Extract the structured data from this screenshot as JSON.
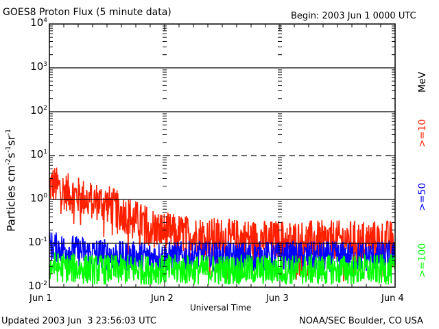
{
  "header": {
    "title": "GOES8 Proton Flux (5 minute data)",
    "begin": "Begin: 2003 Jun 1 0000 UTC"
  },
  "footer": {
    "updated": "Updated 2003 Jun  3 23:56:03 UTC",
    "credit": "NOAA/SEC Boulder, CO USA"
  },
  "colors": {
    "ge10": "#ff2000",
    "ge50": "#0000ff",
    "ge100": "#00ff00",
    "axes": "#000000",
    "background": "#ffffff"
  },
  "chart_data": {
    "type": "line",
    "title": "GOES8 Proton Flux (5 minute data)",
    "xlabel": "Universal Time",
    "ylabel": "Particles cm-2s-1sr-1",
    "ylabel_parts": {
      "base": "Particles cm",
      "e1": "-2",
      "s": "s",
      "e2": "-1",
      "sr": "sr",
      "e3": "-1"
    },
    "yscale": "log",
    "ylim": [
      0.01,
      10000
    ],
    "y_ticks": [
      {
        "base": "10",
        "exp": "4",
        "value": 10000
      },
      {
        "base": "10",
        "exp": "3",
        "value": 1000
      },
      {
        "base": "10",
        "exp": "2",
        "value": 100
      },
      {
        "base": "10",
        "exp": "1",
        "value": 10
      },
      {
        "base": "10",
        "exp": "0",
        "value": 1
      },
      {
        "base": "10",
        "exp": "-1",
        "value": 0.1
      },
      {
        "base": "10",
        "exp": "-2",
        "value": 0.01
      }
    ],
    "gridlines": [
      {
        "value": 1000,
        "style": "solid"
      },
      {
        "value": 100,
        "style": "solid"
      },
      {
        "value": 10,
        "style": "dashed"
      },
      {
        "value": 1,
        "style": "solid"
      },
      {
        "value": 0.1,
        "style": "solid"
      }
    ],
    "xlim_hours": [
      0,
      72
    ],
    "x_ticks": [
      "Jun 1",
      "Jun 2",
      "Jun 3",
      "Jun 4"
    ],
    "x_minor_tick_hours": 3,
    "units_label": "MeV",
    "legend_placement": "right",
    "grid": true,
    "series": [
      {
        "name": ">=10",
        "color": "#ff2000",
        "hourly_values": [
          2.0,
          2.2,
          1.8,
          1.6,
          1.4,
          1.3,
          1.2,
          1.1,
          1.0,
          0.95,
          0.9,
          0.85,
          0.8,
          0.7,
          0.6,
          0.5,
          0.45,
          0.4,
          0.35,
          0.3,
          0.28,
          0.25,
          0.22,
          0.2,
          0.19,
          0.18,
          0.17,
          0.17,
          0.16,
          0.16,
          0.15,
          0.15,
          0.15,
          0.14,
          0.14,
          0.14,
          0.14,
          0.13,
          0.13,
          0.13,
          0.13,
          0.13,
          0.13,
          0.12,
          0.13,
          0.12,
          0.12,
          0.12,
          0.13,
          0.12,
          0.12,
          0.12,
          0.12,
          0.12,
          0.12,
          0.12,
          0.12,
          0.12,
          0.12,
          0.12,
          0.12,
          0.12,
          0.12,
          0.12,
          0.12,
          0.12,
          0.12,
          0.12,
          0.12,
          0.12,
          0.12,
          0.12
        ]
      },
      {
        "name": ">=50",
        "color": "#0000ff",
        "hourly_values": [
          0.09,
          0.08,
          0.08,
          0.075,
          0.07,
          0.07,
          0.065,
          0.065,
          0.06,
          0.06,
          0.06,
          0.06,
          0.055,
          0.055,
          0.055,
          0.05,
          0.05,
          0.05,
          0.05,
          0.05,
          0.05,
          0.05,
          0.05,
          0.05,
          0.05,
          0.05,
          0.05,
          0.05,
          0.05,
          0.05,
          0.05,
          0.05,
          0.05,
          0.05,
          0.05,
          0.05,
          0.05,
          0.05,
          0.05,
          0.05,
          0.05,
          0.05,
          0.05,
          0.05,
          0.05,
          0.05,
          0.05,
          0.05,
          0.05,
          0.05,
          0.05,
          0.05,
          0.05,
          0.05,
          0.05,
          0.05,
          0.05,
          0.05,
          0.05,
          0.05,
          0.05,
          0.05,
          0.05,
          0.05,
          0.05,
          0.05,
          0.05,
          0.05,
          0.05,
          0.05,
          0.05,
          0.05
        ]
      },
      {
        "name": ">=100",
        "color": "#00ff00",
        "hourly_values": [
          0.03,
          0.03,
          0.028,
          0.028,
          0.027,
          0.027,
          0.026,
          0.026,
          0.026,
          0.025,
          0.025,
          0.025,
          0.025,
          0.025,
          0.025,
          0.025,
          0.025,
          0.025,
          0.025,
          0.025,
          0.025,
          0.025,
          0.025,
          0.025,
          0.025,
          0.025,
          0.025,
          0.025,
          0.025,
          0.025,
          0.025,
          0.025,
          0.025,
          0.025,
          0.025,
          0.025,
          0.025,
          0.025,
          0.025,
          0.025,
          0.025,
          0.025,
          0.025,
          0.025,
          0.025,
          0.025,
          0.025,
          0.025,
          0.025,
          0.025,
          0.025,
          0.025,
          0.025,
          0.025,
          0.025,
          0.025,
          0.025,
          0.025,
          0.025,
          0.025,
          0.025,
          0.025,
          0.025,
          0.025,
          0.025,
          0.025,
          0.025,
          0.025,
          0.025,
          0.025,
          0.025,
          0.025
        ]
      }
    ]
  }
}
